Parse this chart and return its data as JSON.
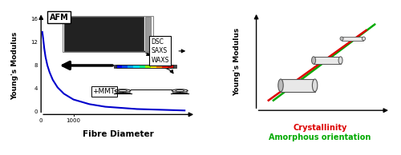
{
  "left_plot": {
    "xlabel": "Fibre Diameter",
    "ylabel": "Young's Modulus",
    "curve_color": "#0000cc",
    "curve_x": [
      0.02,
      0.05,
      0.08,
      0.12,
      0.18,
      0.25,
      0.35,
      0.5,
      0.7,
      1.0,
      1.5,
      2.0,
      3.0,
      4.5
    ],
    "curve_y": [
      13.8,
      12.5,
      11.0,
      9.5,
      8.0,
      6.8,
      5.5,
      4.2,
      3.1,
      2.1,
      1.3,
      0.85,
      0.45,
      0.2
    ],
    "yticks": [
      0,
      4,
      8,
      12,
      16
    ],
    "xtick_label": "1000",
    "afm_label": "AFM",
    "mmt_label": "+MMT",
    "dsc_label": "DSC\nSAXS\nWAXS"
  },
  "right_plot": {
    "ylabel": "Young's Modulus",
    "xlabel_red": "Crystallinity",
    "xlabel_green": "Amorphous orientation",
    "line_red_color": "#dd0000",
    "line_green_color": "#00aa00"
  },
  "bg_color": "#ffffff"
}
